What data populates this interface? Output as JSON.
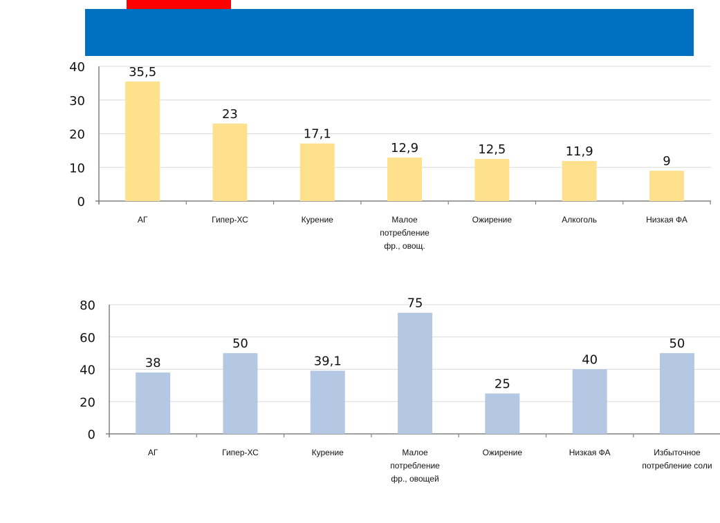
{
  "colors": {
    "banner": "#0070c0",
    "red_tab": "#ff0000",
    "bar_top": "#ffe08c",
    "bar_bottom": "#b4c8e4",
    "grid": "#d9d9d9",
    "axis": "#808080"
  },
  "chart_data": [
    {
      "type": "bar",
      "categories": [
        "АГ",
        "Гипер-ХС",
        "Курение",
        "Малое потребление фр., овощ.",
        "Ожирение",
        "Алкоголь",
        "Низкая ФА"
      ],
      "values": [
        35.5,
        23,
        17.1,
        12.9,
        12.5,
        11.9,
        9
      ],
      "data_labels": [
        "35,5",
        "23",
        "17,1",
        "12,9",
        "12,5",
        "11,9",
        "9"
      ],
      "category_lines": [
        [
          "АГ"
        ],
        [
          "Гипер-ХС"
        ],
        [
          "Курение"
        ],
        [
          "Малое",
          "потребление",
          "фр., овощ."
        ],
        [
          "Ожирение"
        ],
        [
          "Алкоголь"
        ],
        [
          "Низкая ФА"
        ]
      ],
      "yticks": [
        0,
        10,
        20,
        30,
        40
      ],
      "ylim": [
        0,
        40
      ],
      "grid": true,
      "legend": "none"
    },
    {
      "type": "bar",
      "categories": [
        "АГ",
        "Гипер-ХС",
        "Курение",
        "Малое потребление фр., овощей",
        "Ожирение",
        "Низкая ФА",
        "Избыточное потребление соли"
      ],
      "values": [
        38,
        50,
        39.1,
        75,
        25,
        40,
        50
      ],
      "data_labels": [
        "38",
        "50",
        "39,1",
        "75",
        "25",
        "40",
        "50"
      ],
      "category_lines": [
        [
          "АГ"
        ],
        [
          "Гипер-ХС"
        ],
        [
          "Курение"
        ],
        [
          "Малое",
          "потребление",
          "фр., овощей"
        ],
        [
          "Ожирение"
        ],
        [
          "Низкая ФА"
        ],
        [
          "Избыточное",
          "потребление соли"
        ]
      ],
      "yticks": [
        0,
        20,
        40,
        60,
        80
      ],
      "ylim": [
        0,
        80
      ],
      "grid": true,
      "legend": "none"
    }
  ]
}
